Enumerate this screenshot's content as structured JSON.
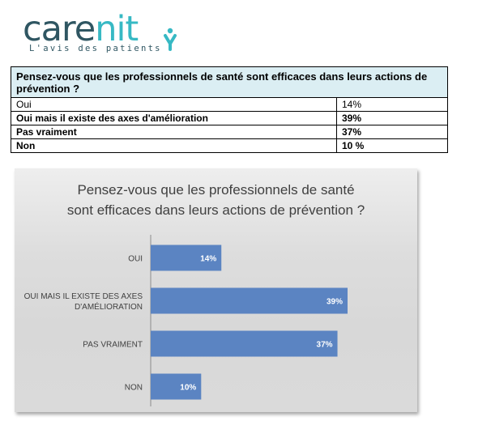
{
  "logo": {
    "word_part1": "care",
    "word_part2": "nit",
    "tagline": "L'avis des patients",
    "colors": {
      "dark": "#2f5662",
      "accent": "#37b9c4"
    },
    "icon": "person-icon"
  },
  "table": {
    "question": "Pensez-vous que les professionnels de santé sont efficaces dans leurs actions de prévention ?",
    "rows": [
      {
        "label": "Oui",
        "value": "14%"
      },
      {
        "label": "Oui mais il existe des axes d'amélioration",
        "value": "39%"
      },
      {
        "label": "Pas vraiment",
        "value": "37%"
      },
      {
        "label": "Non",
        "value": "10 %"
      }
    ]
  },
  "chart_data": {
    "type": "bar",
    "orientation": "horizontal",
    "title": "Pensez-vous que les professionnels de santé sont efficaces dans leurs actions de prévention ?",
    "title_lines": [
      "Pensez-vous que les professionnels de santé",
      "sont efficaces dans leurs actions de prévention ?"
    ],
    "categories": [
      "OUI",
      "OUI MAIS IL EXISTE DES AXES D'AMÉLIORATION",
      "PAS VRAIMENT",
      "NON"
    ],
    "category_lines": [
      [
        "OUI"
      ],
      [
        "OUI MAIS IL EXISTE DES AXES",
        "D'AMÉLIORATION"
      ],
      [
        "PAS VRAIMENT"
      ],
      [
        "NON"
      ]
    ],
    "values": [
      14,
      39,
      37,
      10
    ],
    "data_labels": [
      "14%",
      "39%",
      "37%",
      "10%"
    ],
    "unit": "%",
    "xlim": [
      0,
      39
    ],
    "grid": false,
    "legend": "none",
    "bar_color": "#5b84c2"
  }
}
